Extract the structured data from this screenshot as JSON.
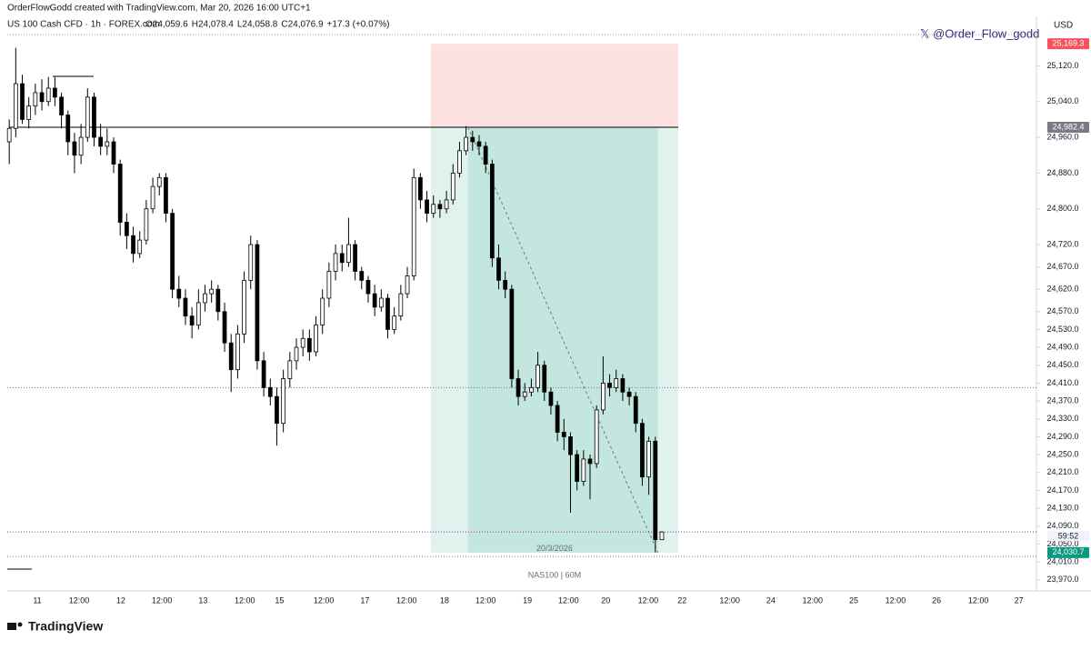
{
  "header": {
    "credit": "OrderFlowGodd created with TradingView.com, Mar 20, 2026 16:00 UTC+1",
    "brand": "TradingView"
  },
  "chart_data": {
    "type": "candlestick",
    "title": "US 100 Cash CFD · 1h · FOREX.com",
    "readout": [
      "O24,059.6",
      "H24,078.4",
      "L24,058.8",
      "C24,076.9",
      "+17.3 (+0.07%)"
    ],
    "currency": "USD",
    "watermark": "𝕏 @Order_Flow_godd",
    "date_label": "20/3/2026",
    "symbol_label": "NAS100 | 60M",
    "countdown": "59:52",
    "up_color": "#ffffff",
    "down_color": "#000000",
    "ylim": [
      23945,
      25190
    ],
    "yticks": [
      {
        "value": 25120,
        "label": "25,120.0"
      },
      {
        "value": 25040,
        "label": "25,040.0"
      },
      {
        "value": 24960,
        "label": "24,960.0"
      },
      {
        "value": 24880,
        "label": "24,880.0"
      },
      {
        "value": 24800,
        "label": "24,800.0"
      },
      {
        "value": 24720,
        "label": "24,720.0"
      },
      {
        "value": 24670,
        "label": "24,670.0"
      },
      {
        "value": 24620,
        "label": "24,620.0"
      },
      {
        "value": 24570,
        "label": "24,570.0"
      },
      {
        "value": 24530,
        "label": "24,530.0"
      },
      {
        "value": 24490,
        "label": "24,490.0"
      },
      {
        "value": 24450,
        "label": "24,450.0"
      },
      {
        "value": 24410,
        "label": "24,410.0"
      },
      {
        "value": 24370,
        "label": "24,370.0"
      },
      {
        "value": 24330,
        "label": "24,330.0"
      },
      {
        "value": 24290,
        "label": "24,290.0"
      },
      {
        "value": 24250,
        "label": "24,250.0"
      },
      {
        "value": 24210,
        "label": "24,210.0"
      },
      {
        "value": 24170,
        "label": "24,170.0"
      },
      {
        "value": 24130,
        "label": "24,130.0"
      },
      {
        "value": 24090,
        "label": "24,090.0"
      },
      {
        "value": 24050,
        "label": "24,050.0"
      },
      {
        "value": 24010,
        "label": "24,010.0"
      },
      {
        "value": 23970,
        "label": "23,970.0"
      }
    ],
    "xlim": [
      -0.3,
      157.4
    ],
    "xticks": [
      {
        "value": 4.3,
        "label": "11"
      },
      {
        "value": 10.7,
        "label": "12:00"
      },
      {
        "value": 17.1,
        "label": "12"
      },
      {
        "value": 23.4,
        "label": "12:00"
      },
      {
        "value": 29.7,
        "label": "13"
      },
      {
        "value": 36.1,
        "label": "12:00"
      },
      {
        "value": 41.4,
        "label": "15"
      },
      {
        "value": 48.2,
        "label": "12:00"
      },
      {
        "value": 54.5,
        "label": "17"
      },
      {
        "value": 60.9,
        "label": "12:00"
      },
      {
        "value": 66.7,
        "label": "18"
      },
      {
        "value": 73.0,
        "label": "12:00"
      },
      {
        "value": 79.4,
        "label": "19"
      },
      {
        "value": 85.7,
        "label": "12:00"
      },
      {
        "value": 91.4,
        "label": "20"
      },
      {
        "value": 97.9,
        "label": "12:00"
      },
      {
        "value": 103.1,
        "label": "22"
      },
      {
        "value": 110.4,
        "label": "12:00"
      },
      {
        "value": 116.7,
        "label": "24"
      },
      {
        "value": 123.1,
        "label": "12:00"
      },
      {
        "value": 129.4,
        "label": "25"
      },
      {
        "value": 135.8,
        "label": "12:00"
      },
      {
        "value": 142.1,
        "label": "26"
      },
      {
        "value": 148.5,
        "label": "12:00"
      },
      {
        "value": 154.7,
        "label": "27"
      }
    ],
    "levels": [
      24400,
      24022
    ],
    "position": {
      "entry": 24982.4,
      "stop": 25169.3,
      "target": 24030.7,
      "value_labels": [
        "24,982.4",
        "25,169.3",
        "24,030.7"
      ],
      "start": 64.6,
      "end": 102.5,
      "filled": [
        70.3,
        99.4
      ]
    },
    "candles": [
      [
        24950,
        25000,
        24900,
        24980
      ],
      [
        24980,
        25160,
        24960,
        25080
      ],
      [
        25080,
        25100,
        24990,
        25000
      ],
      [
        25000,
        25050,
        24980,
        25030
      ],
      [
        25030,
        25080,
        25010,
        25060
      ],
      [
        25060,
        25090,
        25020,
        25040
      ],
      [
        25040,
        25095,
        25030,
        25070
      ],
      [
        25070,
        25095,
        25030,
        25050
      ],
      [
        25050,
        25060,
        24980,
        25010
      ],
      [
        25010,
        25020,
        24920,
        24950
      ],
      [
        24950,
        24970,
        24880,
        24920
      ],
      [
        24920,
        24990,
        24900,
        24960
      ],
      [
        24960,
        25070,
        24950,
        25050
      ],
      [
        25050,
        25060,
        24940,
        24960
      ],
      [
        24960,
        24990,
        24920,
        24940
      ],
      [
        24940,
        24980,
        24920,
        24950
      ],
      [
        24950,
        24960,
        24880,
        24900
      ],
      [
        24900,
        24910,
        24740,
        24770
      ],
      [
        24770,
        24790,
        24710,
        24740
      ],
      [
        24740,
        24760,
        24680,
        24700
      ],
      [
        24700,
        24750,
        24690,
        24730
      ],
      [
        24730,
        24820,
        24720,
        24800
      ],
      [
        24800,
        24870,
        24790,
        24850
      ],
      [
        24850,
        24880,
        24830,
        24870
      ],
      [
        24870,
        24880,
        24770,
        24790
      ],
      [
        24790,
        24800,
        24600,
        24620
      ],
      [
        24620,
        24650,
        24580,
        24600
      ],
      [
        24600,
        24620,
        24540,
        24560
      ],
      [
        24560,
        24580,
        24510,
        24540
      ],
      [
        24540,
        24620,
        24530,
        24590
      ],
      [
        24590,
        24630,
        24570,
        24610
      ],
      [
        24610,
        24640,
        24590,
        24620
      ],
      [
        24620,
        24630,
        24550,
        24570
      ],
      [
        24570,
        24590,
        24480,
        24500
      ],
      [
        24500,
        24520,
        24390,
        24440
      ],
      [
        24440,
        24540,
        24420,
        24520
      ],
      [
        24520,
        24660,
        24500,
        24640
      ],
      [
        24640,
        24740,
        24620,
        24720
      ],
      [
        24720,
        24730,
        24440,
        24460
      ],
      [
        24460,
        24480,
        24380,
        24400
      ],
      [
        24400,
        24420,
        24360,
        24380
      ],
      [
        24380,
        24400,
        24270,
        24320
      ],
      [
        24320,
        24440,
        24300,
        24420
      ],
      [
        24420,
        24480,
        24400,
        24460
      ],
      [
        24460,
        24510,
        24440,
        24490
      ],
      [
        24490,
        24530,
        24470,
        24510
      ],
      [
        24510,
        24530,
        24460,
        24480
      ],
      [
        24480,
        24560,
        24470,
        24540
      ],
      [
        24540,
        24620,
        24520,
        24600
      ],
      [
        24600,
        24680,
        24580,
        24660
      ],
      [
        24660,
        24720,
        24640,
        24700
      ],
      [
        24700,
        24720,
        24660,
        24680
      ],
      [
        24680,
        24780,
        24670,
        24720
      ],
      [
        24720,
        24730,
        24640,
        24660
      ],
      [
        24660,
        24670,
        24620,
        24640
      ],
      [
        24640,
        24650,
        24590,
        24610
      ],
      [
        24610,
        24630,
        24560,
        24580
      ],
      [
        24580,
        24620,
        24570,
        24600
      ],
      [
        24600,
        24610,
        24510,
        24530
      ],
      [
        24530,
        24580,
        24520,
        24560
      ],
      [
        24560,
        24630,
        24550,
        24610
      ],
      [
        24610,
        24670,
        24600,
        24650
      ],
      [
        24650,
        24890,
        24640,
        24870
      ],
      [
        24870,
        24880,
        24800,
        24820
      ],
      [
        24820,
        24840,
        24770,
        24790
      ],
      [
        24790,
        24830,
        24780,
        24810
      ],
      [
        24810,
        24820,
        24780,
        24800
      ],
      [
        24800,
        24840,
        24790,
        24820
      ],
      [
        24820,
        24900,
        24810,
        24880
      ],
      [
        24880,
        24950,
        24870,
        24930
      ],
      [
        24930,
        24985,
        24920,
        24960
      ],
      [
        24960,
        24975,
        24930,
        24950
      ],
      [
        24950,
        24965,
        24920,
        24940
      ],
      [
        24940,
        24950,
        24880,
        24900
      ],
      [
        24900,
        24910,
        24670,
        24690
      ],
      [
        24690,
        24720,
        24620,
        24640
      ],
      [
        24640,
        24660,
        24600,
        24620
      ],
      [
        24620,
        24630,
        24400,
        24420
      ],
      [
        24420,
        24440,
        24360,
        24380
      ],
      [
        24380,
        24410,
        24370,
        24390
      ],
      [
        24390,
        24420,
        24380,
        24400
      ],
      [
        24400,
        24480,
        24390,
        24450
      ],
      [
        24450,
        24460,
        24370,
        24390
      ],
      [
        24390,
        24400,
        24340,
        24360
      ],
      [
        24360,
        24370,
        24280,
        24300
      ],
      [
        24300,
        24330,
        24260,
        24290
      ],
      [
        24290,
        24300,
        24120,
        24250
      ],
      [
        24250,
        24260,
        24170,
        24190
      ],
      [
        24190,
        24260,
        24180,
        24240
      ],
      [
        24240,
        24250,
        24150,
        24230
      ],
      [
        24230,
        24360,
        24220,
        24350
      ],
      [
        24350,
        24470,
        24340,
        24410
      ],
      [
        24410,
        24430,
        24380,
        24400
      ],
      [
        24400,
        24440,
        24390,
        24420
      ],
      [
        24420,
        24430,
        24370,
        24390
      ],
      [
        24390,
        24400,
        24360,
        24380
      ],
      [
        24380,
        24390,
        24300,
        24320
      ],
      [
        24320,
        24330,
        24180,
        24200
      ],
      [
        24200,
        24290,
        24160,
        24280
      ],
      [
        24280,
        24290,
        24031,
        24059.6
      ],
      [
        24059.6,
        24078.4,
        24058.8,
        24076.9
      ]
    ]
  }
}
